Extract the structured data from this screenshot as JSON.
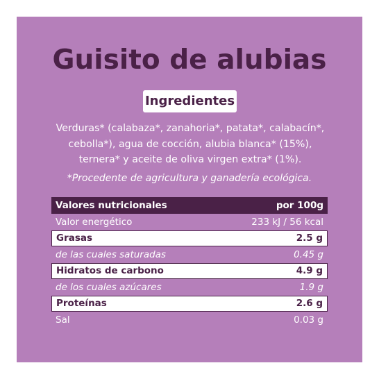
{
  "product": {
    "title": "Guisito de alubias"
  },
  "ingredients": {
    "label": "Ingredientes",
    "text": "Verduras* (calabaza*, zanahoria*, patata*, calabacín*, cebolla*), agua de cocción, alubia blanca* (15%), ternera* y aceite de oliva virgen extra* (1%).",
    "note": "*Procedente de agricultura y ganadería ecológica."
  },
  "nutrition": {
    "header": {
      "label": "Valores nutricionales",
      "value": "por 100g"
    },
    "rows": [
      {
        "label": "Valor energético",
        "value": "233 kJ / 56 kcal"
      },
      {
        "label": "Grasas",
        "value": "2.5 g"
      },
      {
        "label": "de las cuales saturadas",
        "value": "0.45 g"
      },
      {
        "label": "Hidratos de carbono",
        "value": "4.9 g"
      },
      {
        "label": "de los cuales azúcares",
        "value": "1.9 g"
      },
      {
        "label": "Proteínas",
        "value": "2.6 g"
      },
      {
        "label": "Sal",
        "value": "0.03 g"
      }
    ]
  },
  "colors": {
    "background": "#b57fba",
    "accent": "#4a2147",
    "text_light": "#ffffff"
  }
}
